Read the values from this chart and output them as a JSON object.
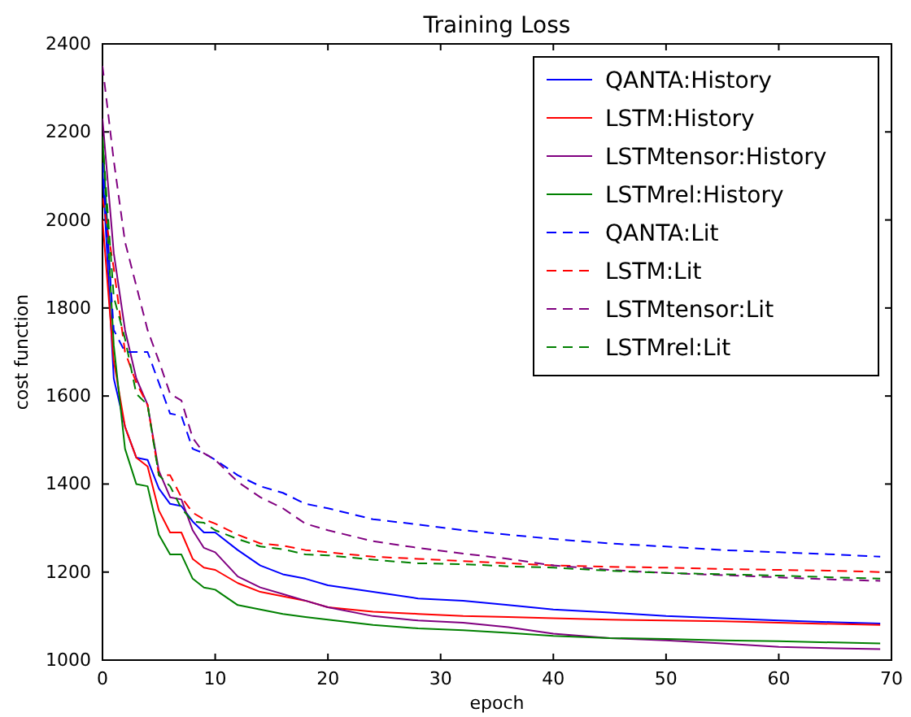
{
  "chart_data": {
    "type": "line",
    "title": "Training Loss",
    "xlabel": "epoch",
    "ylabel": "cost function",
    "x": [
      0,
      1,
      2,
      3,
      4,
      5,
      6,
      7,
      8,
      9,
      10,
      12,
      14,
      16,
      18,
      20,
      24,
      28,
      32,
      36,
      40,
      45,
      50,
      55,
      60,
      65,
      69
    ],
    "xlim": [
      0,
      70
    ],
    "xticks": [
      0,
      10,
      20,
      30,
      40,
      50,
      60,
      70
    ],
    "ylim": [
      1000,
      2400
    ],
    "yticks": [
      1000,
      1200,
      1400,
      1600,
      1800,
      2000,
      2200,
      2400
    ],
    "grid": false,
    "legend": "top right",
    "marker": "none",
    "series": [
      {
        "name": "QANTA:History",
        "color": "#0000ff",
        "line_style": "solid",
        "values": [
          2120,
          1640,
          1530,
          1460,
          1455,
          1390,
          1355,
          1350,
          1315,
          1290,
          1290,
          1250,
          1215,
          1195,
          1185,
          1170,
          1155,
          1140,
          1135,
          1125,
          1115,
          1108,
          1100,
          1095,
          1090,
          1086,
          1083
        ]
      },
      {
        "name": "LSTM:History",
        "color": "#ff0000",
        "line_style": "solid",
        "values": [
          2000,
          1680,
          1530,
          1460,
          1440,
          1340,
          1290,
          1290,
          1230,
          1210,
          1205,
          1175,
          1155,
          1145,
          1135,
          1120,
          1110,
          1105,
          1100,
          1098,
          1095,
          1092,
          1090,
          1088,
          1085,
          1082,
          1080
        ]
      },
      {
        "name": "LSTMtensor:History",
        "color": "#800080",
        "line_style": "solid",
        "values": [
          2230,
          1925,
          1750,
          1640,
          1580,
          1430,
          1370,
          1365,
          1295,
          1255,
          1245,
          1190,
          1165,
          1150,
          1135,
          1120,
          1100,
          1090,
          1085,
          1075,
          1060,
          1050,
          1045,
          1038,
          1030,
          1027,
          1025
        ]
      },
      {
        "name": "LSTMrel:History",
        "color": "#008000",
        "line_style": "solid",
        "values": [
          2190,
          1715,
          1480,
          1400,
          1395,
          1285,
          1240,
          1240,
          1185,
          1165,
          1160,
          1125,
          1115,
          1105,
          1098,
          1092,
          1080,
          1072,
          1068,
          1062,
          1055,
          1050,
          1048,
          1045,
          1043,
          1040,
          1038
        ]
      },
      {
        "name": "QANTA:Lit",
        "color": "#0000ff",
        "line_style": "dashed",
        "values": [
          2130,
          1750,
          1700,
          1700,
          1700,
          1630,
          1560,
          1555,
          1480,
          1470,
          1455,
          1420,
          1395,
          1380,
          1355,
          1345,
          1320,
          1308,
          1295,
          1285,
          1275,
          1265,
          1258,
          1250,
          1245,
          1240,
          1235
        ]
      },
      {
        "name": "LSTM:Lit",
        "color": "#ff0000",
        "line_style": "dashed",
        "values": [
          2050,
          1890,
          1700,
          1630,
          1580,
          1420,
          1420,
          1370,
          1335,
          1320,
          1310,
          1285,
          1265,
          1260,
          1250,
          1245,
          1235,
          1230,
          1225,
          1220,
          1215,
          1212,
          1210,
          1207,
          1205,
          1203,
          1200
        ]
      },
      {
        "name": "LSTMtensor:Lit",
        "color": "#800080",
        "line_style": "dashed",
        "values": [
          2350,
          2135,
          1950,
          1850,
          1750,
          1680,
          1605,
          1590,
          1505,
          1470,
          1455,
          1405,
          1370,
          1345,
          1310,
          1295,
          1270,
          1255,
          1242,
          1230,
          1215,
          1205,
          1198,
          1193,
          1188,
          1183,
          1180
        ]
      },
      {
        "name": "LSTMrel:Lit",
        "color": "#008000",
        "line_style": "dashed",
        "values": [
          2185,
          1825,
          1730,
          1605,
          1580,
          1420,
          1395,
          1345,
          1315,
          1312,
          1295,
          1275,
          1258,
          1252,
          1240,
          1238,
          1228,
          1220,
          1218,
          1213,
          1210,
          1203,
          1198,
          1195,
          1192,
          1188,
          1185
        ]
      }
    ]
  }
}
